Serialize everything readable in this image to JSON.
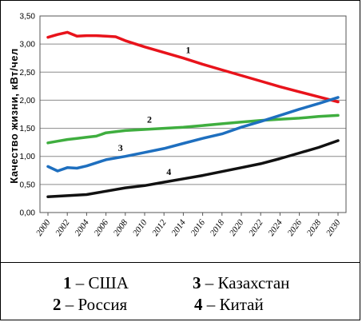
{
  "chart_data": {
    "type": "line",
    "title": "",
    "xlabel": "",
    "ylabel": "Качество жизни, кВт/чел",
    "ylim": [
      0,
      3.5
    ],
    "xlim": [
      2000,
      2030
    ],
    "grid": true,
    "x_ticks": [
      "2000",
      "2002",
      "2004",
      "2006",
      "2008",
      "2010",
      "2012",
      "2014",
      "2016",
      "2018",
      "2020",
      "2022",
      "2024",
      "2026",
      "2028",
      "2030"
    ],
    "y_ticks": [
      "0,00",
      "0,50",
      "1,00",
      "1,50",
      "2,00",
      "2,50",
      "3,00",
      "3,50"
    ],
    "series": [
      {
        "label": "1",
        "color": "#e8131b",
        "points": [
          [
            2000,
            3.12
          ],
          [
            2001,
            3.17
          ],
          [
            2002,
            3.21
          ],
          [
            2003,
            3.14
          ],
          [
            2004,
            3.15
          ],
          [
            2005,
            3.15
          ],
          [
            2006,
            3.14
          ],
          [
            2007,
            3.13
          ],
          [
            2008,
            3.06
          ],
          [
            2010,
            2.95
          ],
          [
            2012,
            2.85
          ],
          [
            2014,
            2.75
          ],
          [
            2016,
            2.64
          ],
          [
            2018,
            2.54
          ],
          [
            2020,
            2.44
          ],
          [
            2022,
            2.34
          ],
          [
            2024,
            2.24
          ],
          [
            2026,
            2.15
          ],
          [
            2028,
            2.06
          ],
          [
            2030,
            1.97
          ]
        ]
      },
      {
        "label": "2",
        "color": "#3fae3f",
        "points": [
          [
            2000,
            1.24
          ],
          [
            2001,
            1.27
          ],
          [
            2002,
            1.3
          ],
          [
            2003,
            1.32
          ],
          [
            2004,
            1.34
          ],
          [
            2005,
            1.36
          ],
          [
            2006,
            1.42
          ],
          [
            2008,
            1.46
          ],
          [
            2010,
            1.48
          ],
          [
            2012,
            1.5
          ],
          [
            2014,
            1.52
          ],
          [
            2016,
            1.55
          ],
          [
            2018,
            1.58
          ],
          [
            2020,
            1.61
          ],
          [
            2022,
            1.64
          ],
          [
            2024,
            1.66
          ],
          [
            2026,
            1.68
          ],
          [
            2028,
            1.71
          ],
          [
            2030,
            1.73
          ]
        ]
      },
      {
        "label": "3",
        "color": "#1e6fbf",
        "points": [
          [
            2000,
            0.82
          ],
          [
            2001,
            0.74
          ],
          [
            2002,
            0.8
          ],
          [
            2003,
            0.79
          ],
          [
            2004,
            0.83
          ],
          [
            2006,
            0.94
          ],
          [
            2008,
            1.0
          ],
          [
            2010,
            1.07
          ],
          [
            2012,
            1.14
          ],
          [
            2014,
            1.23
          ],
          [
            2016,
            1.32
          ],
          [
            2018,
            1.4
          ],
          [
            2020,
            1.52
          ],
          [
            2022,
            1.62
          ],
          [
            2024,
            1.73
          ],
          [
            2026,
            1.84
          ],
          [
            2028,
            1.94
          ],
          [
            2030,
            2.05
          ]
        ]
      },
      {
        "label": "4",
        "color": "#111111",
        "points": [
          [
            2000,
            0.28
          ],
          [
            2002,
            0.3
          ],
          [
            2004,
            0.32
          ],
          [
            2006,
            0.38
          ],
          [
            2008,
            0.44
          ],
          [
            2010,
            0.48
          ],
          [
            2012,
            0.54
          ],
          [
            2014,
            0.6
          ],
          [
            2016,
            0.66
          ],
          [
            2018,
            0.73
          ],
          [
            2020,
            0.8
          ],
          [
            2022,
            0.87
          ],
          [
            2024,
            0.96
          ],
          [
            2026,
            1.06
          ],
          [
            2028,
            1.16
          ],
          [
            2030,
            1.28
          ]
        ]
      }
    ]
  },
  "legend": [
    {
      "num": "1",
      "text": "– США"
    },
    {
      "num": "2",
      "text": "– Россия"
    },
    {
      "num": "3",
      "text": "– Казахстан"
    },
    {
      "num": "4",
      "text": "– Китай"
    }
  ]
}
